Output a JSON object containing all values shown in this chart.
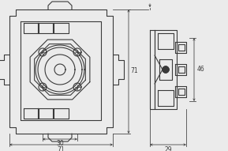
{
  "bg_color": "#ebebeb",
  "line_color": "#3a3a3a",
  "dim_color": "#3a3a3a",
  "fig_w": 2.89,
  "fig_h": 1.91,
  "dpi": 100,
  "dims": {
    "d30": "30",
    "d71_h": "71",
    "d71_w": "71",
    "d46": "46",
    "d29": "29"
  }
}
